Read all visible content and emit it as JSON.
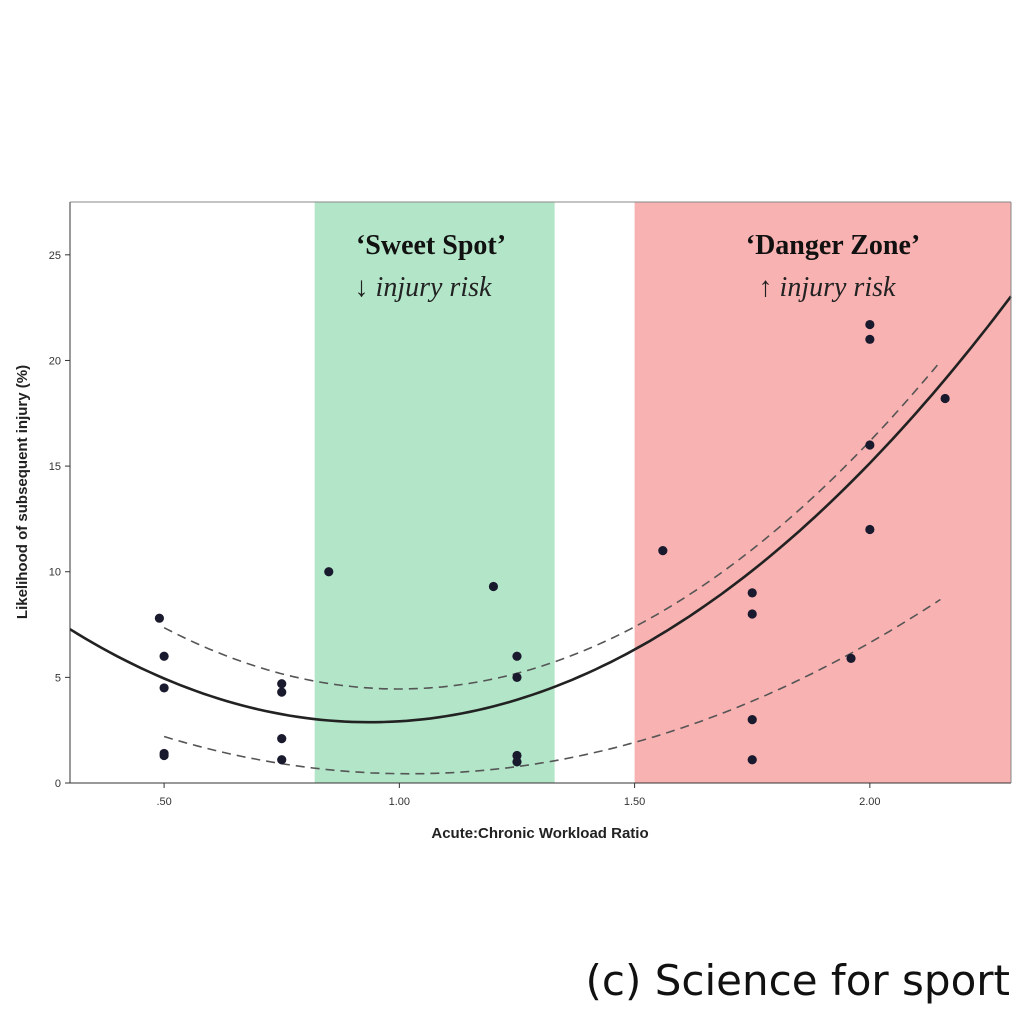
{
  "credit": "(c) Science for sport",
  "chart_data": {
    "type": "scatter",
    "title": "",
    "xlabel": "Acute:Chronic Workload Ratio",
    "ylabel": "Likelihood of subsequent injury (%)",
    "xlim": [
      0.3,
      2.3
    ],
    "ylim": [
      0,
      27.5
    ],
    "x_ticks": [
      0.5,
      1.0,
      1.5,
      2.0
    ],
    "x_tick_labels": [
      ".50",
      "1.00",
      "1.50",
      "2.00"
    ],
    "y_ticks": [
      0,
      5,
      10,
      15,
      20,
      25
    ],
    "y_tick_labels": [
      "0",
      "5",
      "10",
      "15",
      "20",
      "25"
    ],
    "grid": false,
    "zones": [
      {
        "label": "‘Sweet Spot’",
        "sublabel": "↓ injury risk",
        "x_range": [
          0.82,
          1.33
        ],
        "color": "#b3e6c9"
      },
      {
        "label": "‘Danger Zone’",
        "sublabel": "↑ injury risk",
        "x_range": [
          1.5,
          2.3
        ],
        "color": "#f9b2b2"
      }
    ],
    "points": [
      {
        "x": 0.49,
        "y": 7.8
      },
      {
        "x": 0.5,
        "y": 6.0
      },
      {
        "x": 0.5,
        "y": 4.5
      },
      {
        "x": 0.5,
        "y": 1.4
      },
      {
        "x": 0.5,
        "y": 1.3
      },
      {
        "x": 0.75,
        "y": 4.7
      },
      {
        "x": 0.75,
        "y": 4.3
      },
      {
        "x": 0.75,
        "y": 2.1
      },
      {
        "x": 0.75,
        "y": 1.1
      },
      {
        "x": 0.85,
        "y": 10.0
      },
      {
        "x": 1.2,
        "y": 9.3
      },
      {
        "x": 1.25,
        "y": 6.0
      },
      {
        "x": 1.25,
        "y": 5.0
      },
      {
        "x": 1.25,
        "y": 1.3
      },
      {
        "x": 1.25,
        "y": 1.0
      },
      {
        "x": 1.56,
        "y": 11.0
      },
      {
        "x": 1.75,
        "y": 9.0
      },
      {
        "x": 1.75,
        "y": 8.0
      },
      {
        "x": 1.75,
        "y": 3.0
      },
      {
        "x": 1.75,
        "y": 1.1
      },
      {
        "x": 1.96,
        "y": 5.9
      },
      {
        "x": 2.0,
        "y": 21.7
      },
      {
        "x": 2.0,
        "y": 21.0
      },
      {
        "x": 2.0,
        "y": 16.0
      },
      {
        "x": 2.0,
        "y": 12.0
      },
      {
        "x": 2.16,
        "y": 18.2
      }
    ],
    "fit_line": {
      "type": "quadratic",
      "x_range": [
        0.3,
        2.3
      ],
      "coefficients": [
        12.4,
        -20.33,
        10.85
      ]
    },
    "confidence_bands": [
      {
        "type": "quadratic",
        "x_range": [
          0.5,
          2.15
        ],
        "coefficients": [
          16.1,
          -23.34,
          11.69
        ]
      },
      {
        "type": "quadratic",
        "x_range": [
          0.5,
          2.15
        ],
        "coefficients": [
          7.2,
          -13.24,
          6.48
        ]
      }
    ],
    "colors": {
      "points": "#1a1a2e",
      "fit_line": "#222222",
      "band": "#555555",
      "axes": "#333333"
    }
  }
}
